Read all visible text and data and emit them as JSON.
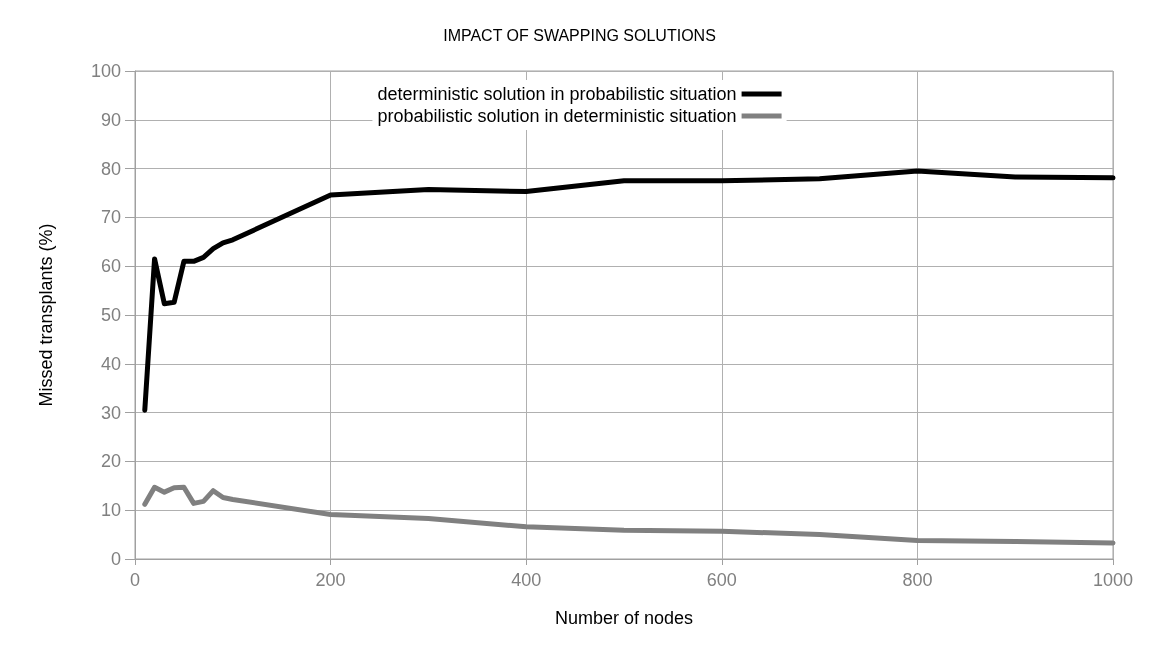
{
  "chart_data": {
    "type": "line",
    "title": "IMPACT OF SWAPPING SOLUTIONS",
    "xlabel": "Number of nodes",
    "ylabel": "Missed transplants (%)",
    "x": [
      10,
      20,
      30,
      40,
      50,
      60,
      70,
      80,
      90,
      100,
      200,
      300,
      400,
      500,
      600,
      700,
      800,
      900,
      1000
    ],
    "series": [
      {
        "name": "deterministic solution in probabilistic situation",
        "color": "#000000",
        "values": [
          30.5,
          61.5,
          52.3,
          52.6,
          61,
          61,
          61.8,
          63.6,
          64.8,
          65.4,
          74.6,
          75.7,
          75.3,
          77.5,
          77.5,
          77.9,
          79.5,
          78.3,
          78.1
        ]
      },
      {
        "name": "probabilistic solution in deterministic situation",
        "color": "#808080",
        "values": [
          11.2,
          14.7,
          13.7,
          14.6,
          14.7,
          11.4,
          11.8,
          14,
          12.6,
          12.2,
          9.1,
          8.3,
          6.6,
          5.9,
          5.7,
          5.0,
          3.8,
          3.6,
          3.3
        ]
      }
    ],
    "xlim": [
      0,
      1000
    ],
    "xticks": [
      0,
      200,
      400,
      600,
      800,
      1000
    ],
    "ylim": [
      0,
      100
    ],
    "yticks": [
      0,
      10,
      20,
      30,
      40,
      50,
      60,
      70,
      80,
      90,
      100
    ],
    "grid": true,
    "legend": "top",
    "marker": "none",
    "line_style": "solid"
  }
}
